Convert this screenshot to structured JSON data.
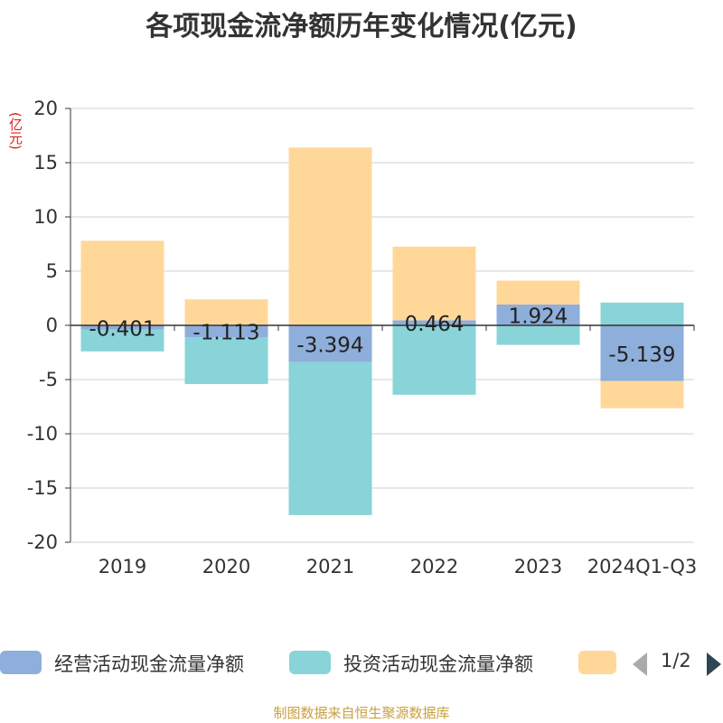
{
  "title": "各项现金流净额历年变化情况(亿元)",
  "source": "制图数据来自恒生聚源数据库",
  "legend_pager": "1/2",
  "colors": {
    "operating": "#8eaedb",
    "investing": "#88d4d8",
    "financing": "#ffd899",
    "grid": "#d0d0d0",
    "axis": "#333333",
    "unit": "#dd2222",
    "source": "#c8a040"
  },
  "chart_data": {
    "type": "bar",
    "stacked": true,
    "title": "各项现金流净额历年变化情况(亿元)",
    "ylabel": "(亿元)",
    "xlabel": "",
    "ylim": [
      -20,
      20
    ],
    "yticks": [
      20,
      15,
      10,
      5,
      0,
      -5,
      -10,
      -15,
      -20
    ],
    "grid": true,
    "categories": [
      "2019",
      "2020",
      "2021",
      "2022",
      "2023",
      "2024Q1-Q3"
    ],
    "series": [
      {
        "name": "经营活动现金流量净额",
        "values": [
          -0.401,
          -1.113,
          -3.394,
          0.464,
          1.924,
          -5.139
        ],
        "labels": [
          "-0.401",
          "-1.113",
          "-3.394",
          "0.464",
          "1.924",
          "-5.139"
        ]
      },
      {
        "name": "投资活动现金流量净额",
        "values": [
          -2.0,
          -4.3,
          -14.1,
          -6.4,
          -1.8,
          2.1
        ],
        "labels": []
      },
      {
        "name": "",
        "values": [
          7.8,
          2.4,
          16.4,
          6.8,
          2.2,
          -2.5
        ],
        "labels": []
      }
    ]
  }
}
